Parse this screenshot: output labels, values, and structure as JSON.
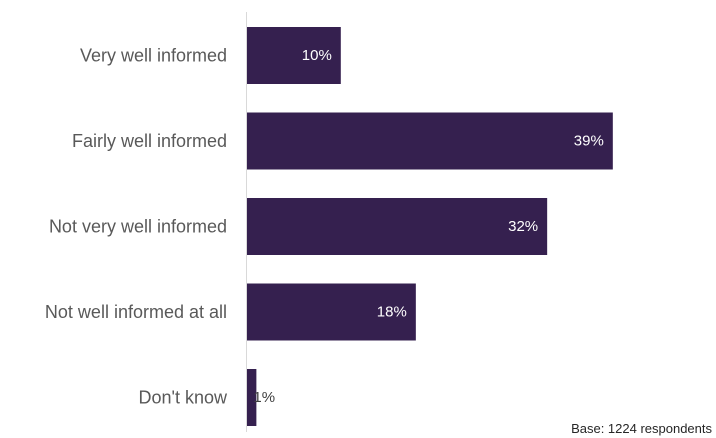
{
  "chart_data": {
    "type": "bar",
    "orientation": "horizontal",
    "categories": [
      "Very well informed",
      "Fairly well informed",
      "Not very well informed",
      "Not well informed at all",
      "Don't know"
    ],
    "values": [
      10,
      39,
      32,
      18,
      1
    ],
    "value_labels": [
      "10%",
      "39%",
      "32%",
      "18%",
      "1%"
    ],
    "unit": "%",
    "xlim": [
      0,
      50
    ],
    "grid": false,
    "legend": "none",
    "bar_color": "#35204f"
  },
  "footnote": "Base: 1224 respondents"
}
